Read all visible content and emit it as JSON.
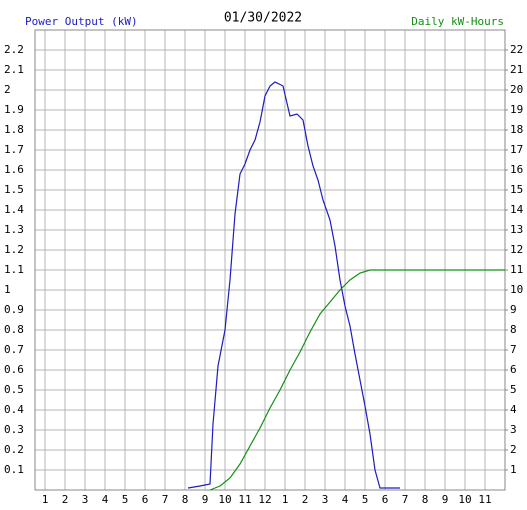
{
  "chart_data": {
    "type": "line",
    "title": "01/30/2022",
    "xlim": [
      0.5,
      24
    ],
    "xticks": [
      1,
      2,
      3,
      4,
      5,
      6,
      7,
      8,
      9,
      10,
      11,
      12,
      {
        "value": 13,
        "label": "1"
      },
      {
        "value": 14,
        "label": "2"
      },
      {
        "value": 15,
        "label": "3"
      },
      {
        "value": 16,
        "label": "4"
      },
      {
        "value": 17,
        "label": "5"
      },
      {
        "value": 18,
        "label": "6"
      },
      {
        "value": 19,
        "label": "7"
      },
      {
        "value": 20,
        "label": "8"
      },
      {
        "value": 21,
        "label": "9"
      },
      {
        "value": 22,
        "label": "10"
      },
      {
        "value": 23,
        "label": "11"
      }
    ],
    "ylim": [
      0,
      2.3
    ],
    "yticks": [
      0.1,
      0.2,
      0.3,
      0.4,
      0.5,
      0.6,
      0.7,
      0.8,
      0.9,
      1.0,
      1.1,
      1.2,
      1.3,
      1.4,
      1.5,
      1.6,
      1.7,
      1.8,
      1.9,
      2.0,
      2.1,
      2.2
    ],
    "y2lim": [
      0,
      23
    ],
    "y2ticks": [
      1,
      2,
      3,
      4,
      5,
      6,
      7,
      8,
      9,
      10,
      11,
      12,
      13,
      14,
      15,
      16,
      17,
      18,
      19,
      20,
      21,
      22
    ],
    "grid": true,
    "series": [
      {
        "name": "Power Output (kW)",
        "color": "#1c1cc0",
        "x": [
          8.15,
          8.75,
          9.25,
          9.4,
          9.65,
          10.0,
          10.25,
          10.5,
          10.75,
          11.0,
          11.25,
          11.5,
          11.75,
          12.0,
          12.25,
          12.5,
          12.9,
          13.25,
          13.6,
          13.9,
          14.15,
          14.4,
          14.65,
          14.9,
          15.25,
          15.5,
          15.75,
          16.0,
          16.25,
          16.5,
          16.75,
          17.0,
          17.25,
          17.5,
          17.75,
          18.75
        ],
        "values": [
          0.01,
          0.02,
          0.03,
          0.33,
          0.62,
          0.8,
          1.05,
          1.38,
          1.58,
          1.63,
          1.7,
          1.75,
          1.84,
          1.97,
          2.02,
          2.04,
          2.02,
          1.87,
          1.88,
          1.85,
          1.72,
          1.62,
          1.55,
          1.45,
          1.35,
          1.22,
          1.05,
          0.92,
          0.82,
          0.68,
          0.55,
          0.42,
          0.28,
          0.1,
          0.01,
          0.01
        ]
      },
      {
        "name": "Daily kW-Hours",
        "color": "#129012",
        "axis": "y2",
        "x": [
          9.25,
          9.75,
          10.25,
          10.75,
          11.25,
          11.75,
          12.25,
          12.75,
          13.25,
          13.75,
          14.25,
          14.75,
          15.25,
          15.75,
          16.25,
          16.75,
          17.25,
          24
        ],
        "values": [
          0,
          0.2,
          0.6,
          1.3,
          2.2,
          3.1,
          4.1,
          5.0,
          6.0,
          6.9,
          7.9,
          8.8,
          9.4,
          10.0,
          10.5,
          10.85,
          11.0,
          11.0
        ]
      }
    ]
  }
}
